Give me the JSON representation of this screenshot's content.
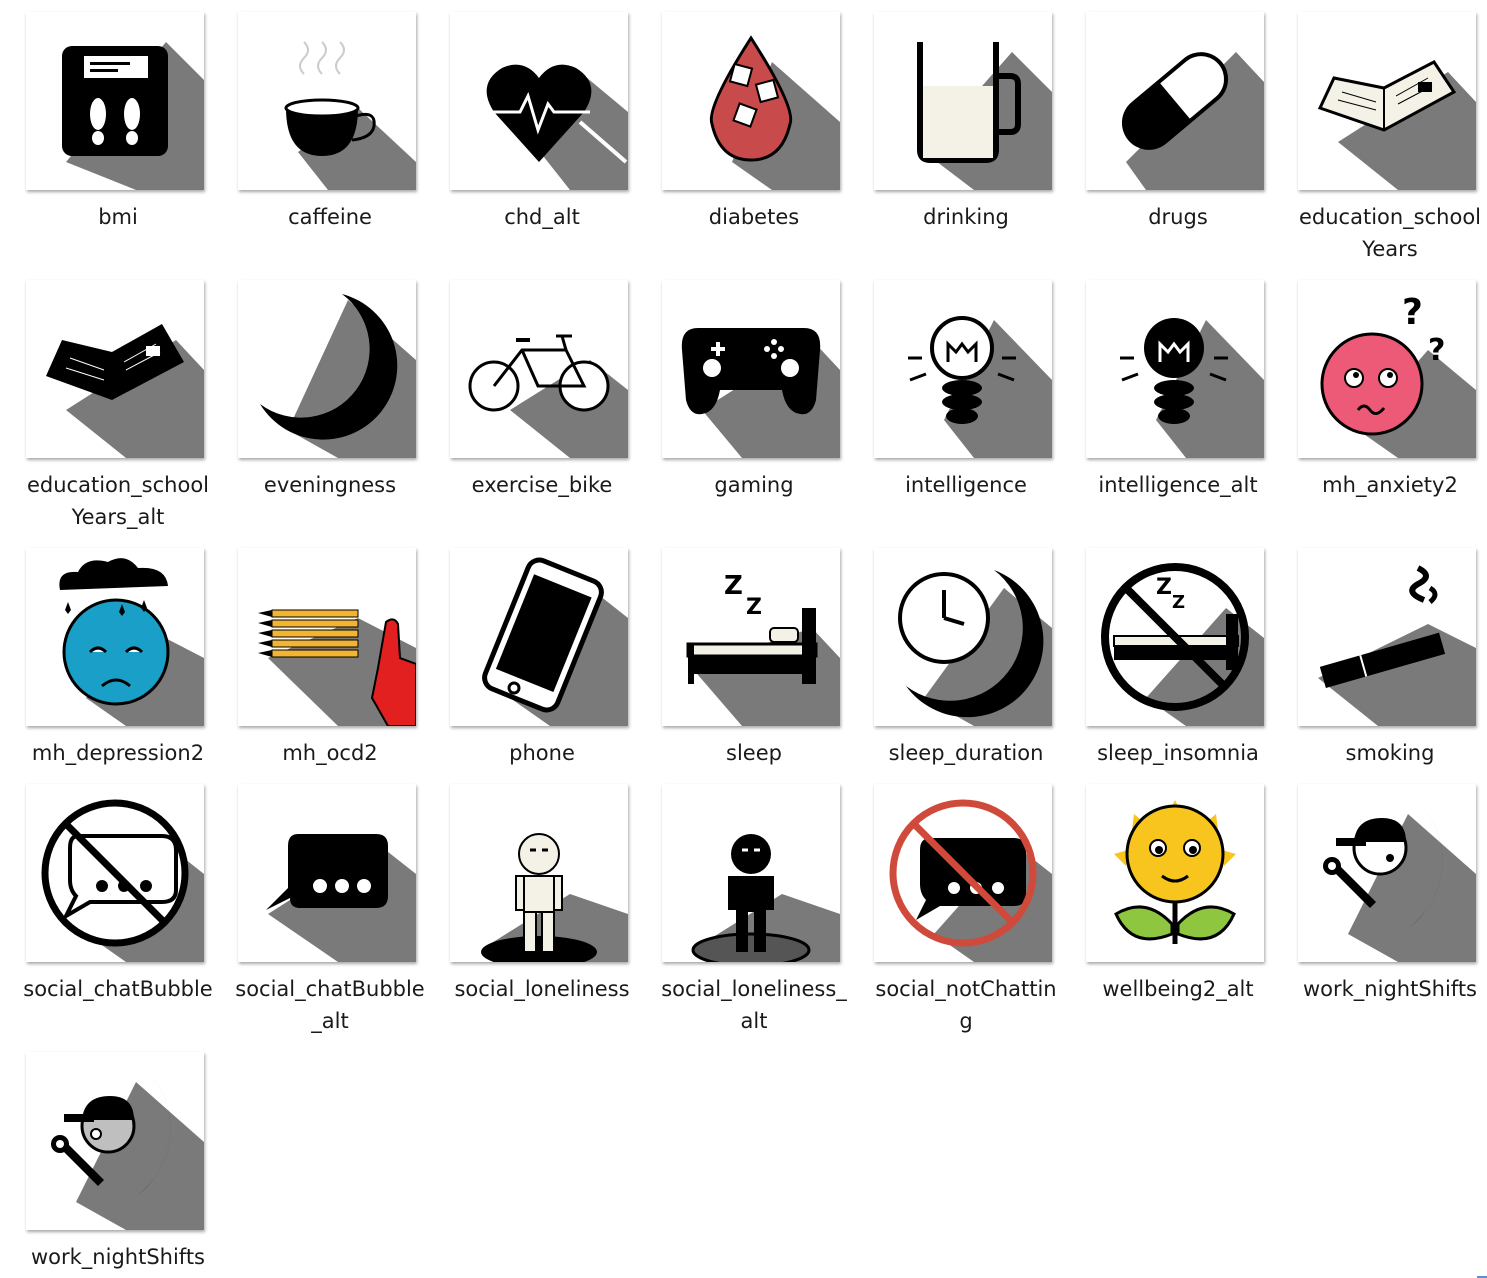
{
  "window": {
    "title": ""
  },
  "accent_color": "#5b8fd6",
  "files": [
    {
      "label": "bmi",
      "icon": "bmi-scale-icon"
    },
    {
      "label": "caffeine",
      "icon": "coffee-cup-icon"
    },
    {
      "label": "chd_alt",
      "icon": "heart-pulse-icon"
    },
    {
      "label": "diabetes",
      "icon": "blood-drop-sugar-icon"
    },
    {
      "label": "drinking",
      "icon": "mug-icon"
    },
    {
      "label": "drugs",
      "icon": "pill-capsule-icon"
    },
    {
      "label": "education_schoolYears",
      "icon": "open-book-icon"
    },
    {
      "label": "education_schoolYears_alt",
      "icon": "open-book-dark-icon"
    },
    {
      "label": "eveningness",
      "icon": "crescent-moon-icon"
    },
    {
      "label": "exercise_bike",
      "icon": "bicycle-icon"
    },
    {
      "label": "gaming",
      "icon": "gamepad-icon"
    },
    {
      "label": "intelligence",
      "icon": "lightbulb-icon"
    },
    {
      "label": "intelligence_alt",
      "icon": "lightbulb-dark-icon"
    },
    {
      "label": "mh_anxiety2",
      "icon": "anxious-face-icon"
    },
    {
      "label": "mh_depression2",
      "icon": "sad-face-raincloud-icon"
    },
    {
      "label": "mh_ocd2",
      "icon": "pencils-hand-icon"
    },
    {
      "label": "phone",
      "icon": "smartphone-icon"
    },
    {
      "label": "sleep",
      "icon": "bed-zzz-icon"
    },
    {
      "label": "sleep_duration",
      "icon": "clock-moon-icon"
    },
    {
      "label": "sleep_insomnia",
      "icon": "no-sleep-icon"
    },
    {
      "label": "smoking",
      "icon": "cigarette-icon"
    },
    {
      "label": "social_chatBubble",
      "icon": "no-chat-bubble-icon"
    },
    {
      "label": "social_chatBubble_alt",
      "icon": "chat-bubble-icon"
    },
    {
      "label": "social_loneliness",
      "icon": "lonely-person-icon"
    },
    {
      "label": "social_loneliness_alt",
      "icon": "lonely-person-dark-icon"
    },
    {
      "label": "social_notChatting",
      "icon": "no-chat-red-icon"
    },
    {
      "label": "wellbeing2_alt",
      "icon": "sunflower-face-icon"
    },
    {
      "label": "work_nightShifts",
      "icon": "worker-moon-icon"
    },
    {
      "label": "work_nightShifts",
      "icon": "worker-moon-grey-icon"
    }
  ],
  "colors": {
    "shadow": "#7a7a7a",
    "drop_red": "#c94a4a",
    "milk": "#f4f1e6",
    "anxiety_pink": "#ec5a78",
    "depression_blue": "#1aa0c8",
    "pencil_yellow": "#f2b431",
    "hand_red": "#e32020",
    "no_sign_red": "#d04a3c",
    "sun_yellow": "#f7c51d",
    "leaf_green": "#8fc640",
    "helmet_grey": "#bfbfbf"
  }
}
